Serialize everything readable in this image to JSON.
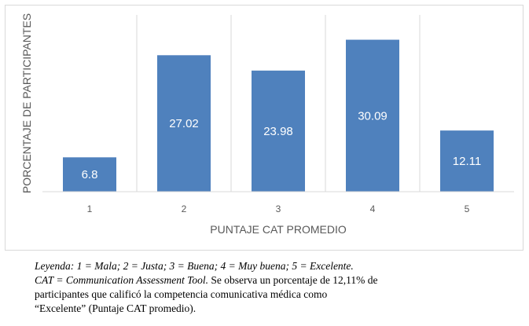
{
  "chart_data": {
    "type": "bar",
    "categories": [
      "1",
      "2",
      "3",
      "4",
      "5"
    ],
    "values": [
      6.8,
      27.02,
      23.98,
      30.09,
      12.11
    ],
    "data_labels": [
      "6.8",
      "27.02",
      "23.98",
      "30.09",
      "12.11"
    ],
    "xlabel": "PUNTAJE CAT PROMEDIO",
    "ylabel": "PORCENTAJE DE PARTICIPANTES",
    "ylim": [
      0,
      35
    ],
    "grid": "vertical category separators",
    "bar_color": "#4f81bd",
    "legend": "none"
  },
  "caption": {
    "line1": "Leyenda: 1 = Mala; 2 = Justa; 3 = Buena; 4 = Muy buena; 5 = Excelente.",
    "line2_italic": "CAT = Communication Assessment Tool.",
    "line2_rest": " Se observa un porcentaje de 12,11% de",
    "line3": "participantes que calificó la competencia comunicativa médica como",
    "line4": "“Excelente” (Puntaje CAT promedio)."
  }
}
